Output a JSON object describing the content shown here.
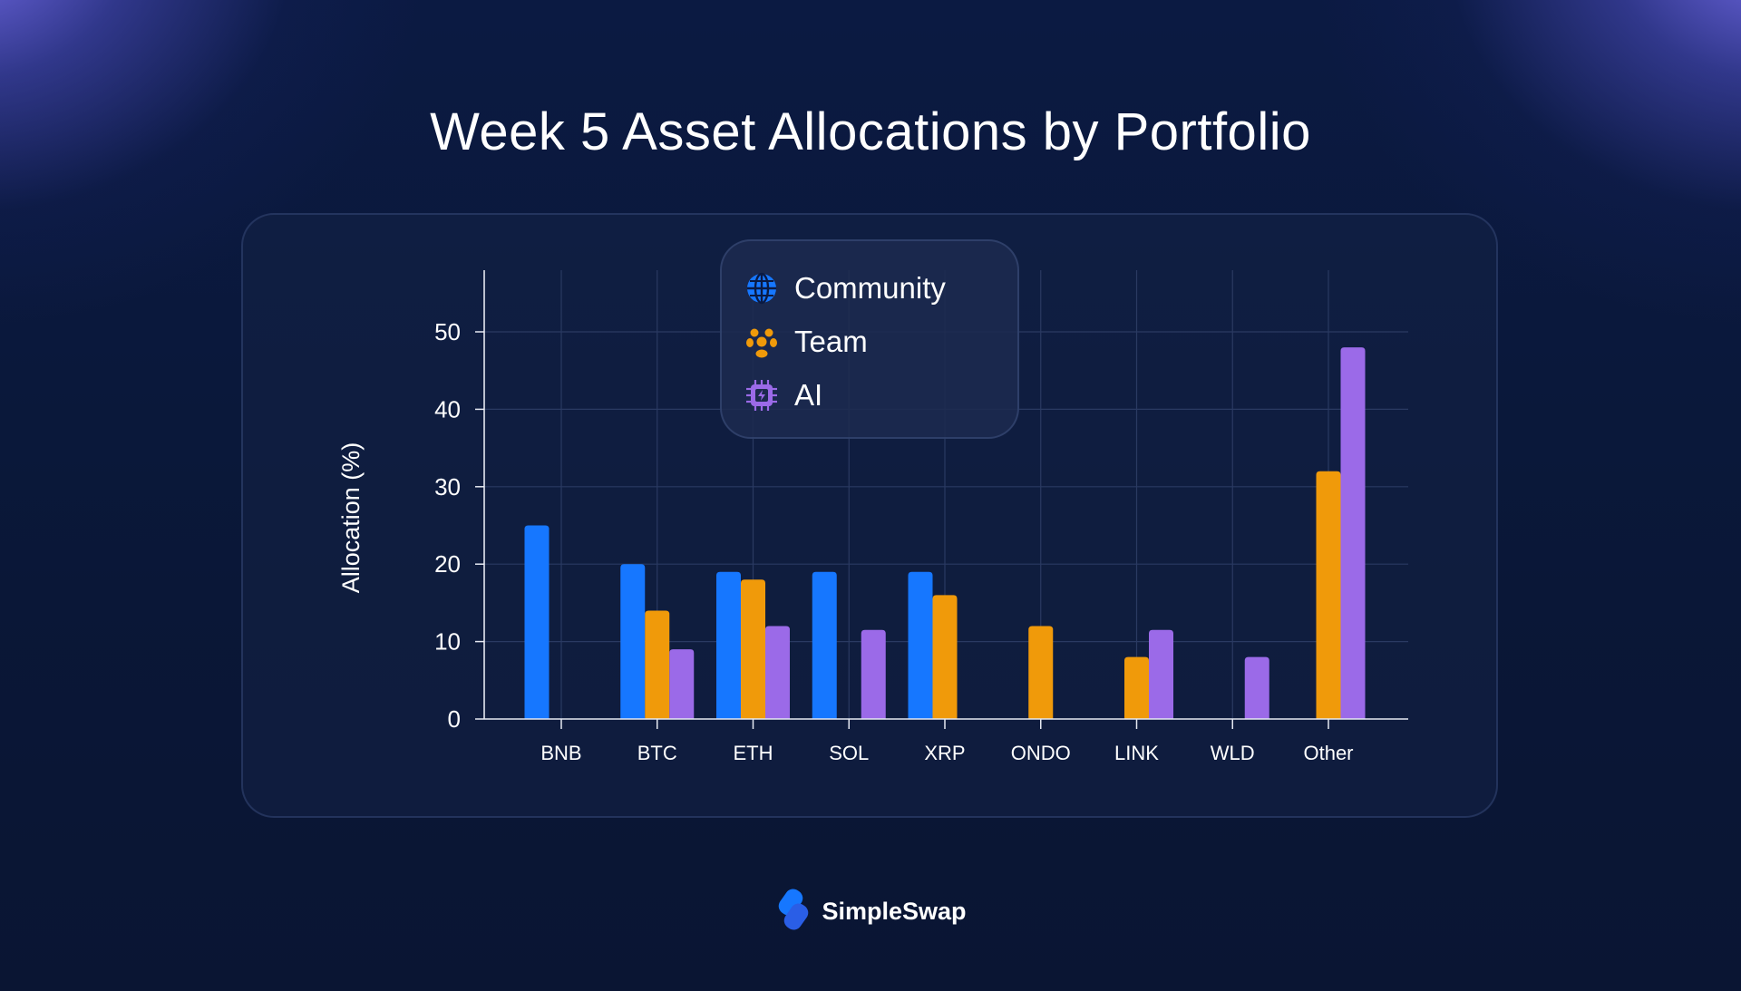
{
  "page": {
    "title": "Week 5 Asset Allocations by Portfolio",
    "brand": "SimpleSwap"
  },
  "colors": {
    "community": "#1677ff",
    "team": "#f09a0a",
    "ai": "#9b6ae8",
    "axis": "#e6e9f2",
    "grid": "#2a3a62",
    "tick_text": "#ffffff"
  },
  "legend": {
    "items": [
      {
        "label": "Community",
        "icon": "globe-icon"
      },
      {
        "label": "Team",
        "icon": "people-icon"
      },
      {
        "label": "AI",
        "icon": "ai-chip-icon"
      }
    ]
  },
  "chart_data": {
    "type": "bar",
    "title": "Week 5 Asset Allocations by Portfolio",
    "xlabel": "",
    "ylabel": "Allocation (%)",
    "ylim": [
      0,
      58
    ],
    "yticks": [
      0,
      10,
      20,
      30,
      40,
      50
    ],
    "grid": true,
    "legend_position": "top-center",
    "categories": [
      "BNB",
      "BTC",
      "ETH",
      "SOL",
      "XRP",
      "ONDO",
      "LINK",
      "WLD",
      "Other"
    ],
    "series": [
      {
        "name": "Community",
        "color": "#1677ff",
        "values": [
          25,
          20,
          19,
          19,
          19,
          null,
          null,
          null,
          null
        ]
      },
      {
        "name": "Team",
        "color": "#f09a0a",
        "values": [
          null,
          14,
          18,
          null,
          16,
          12,
          8,
          null,
          32
        ]
      },
      {
        "name": "AI",
        "color": "#9b6ae8",
        "values": [
          null,
          9,
          12,
          11.5,
          null,
          null,
          11.5,
          8,
          48
        ]
      }
    ]
  }
}
